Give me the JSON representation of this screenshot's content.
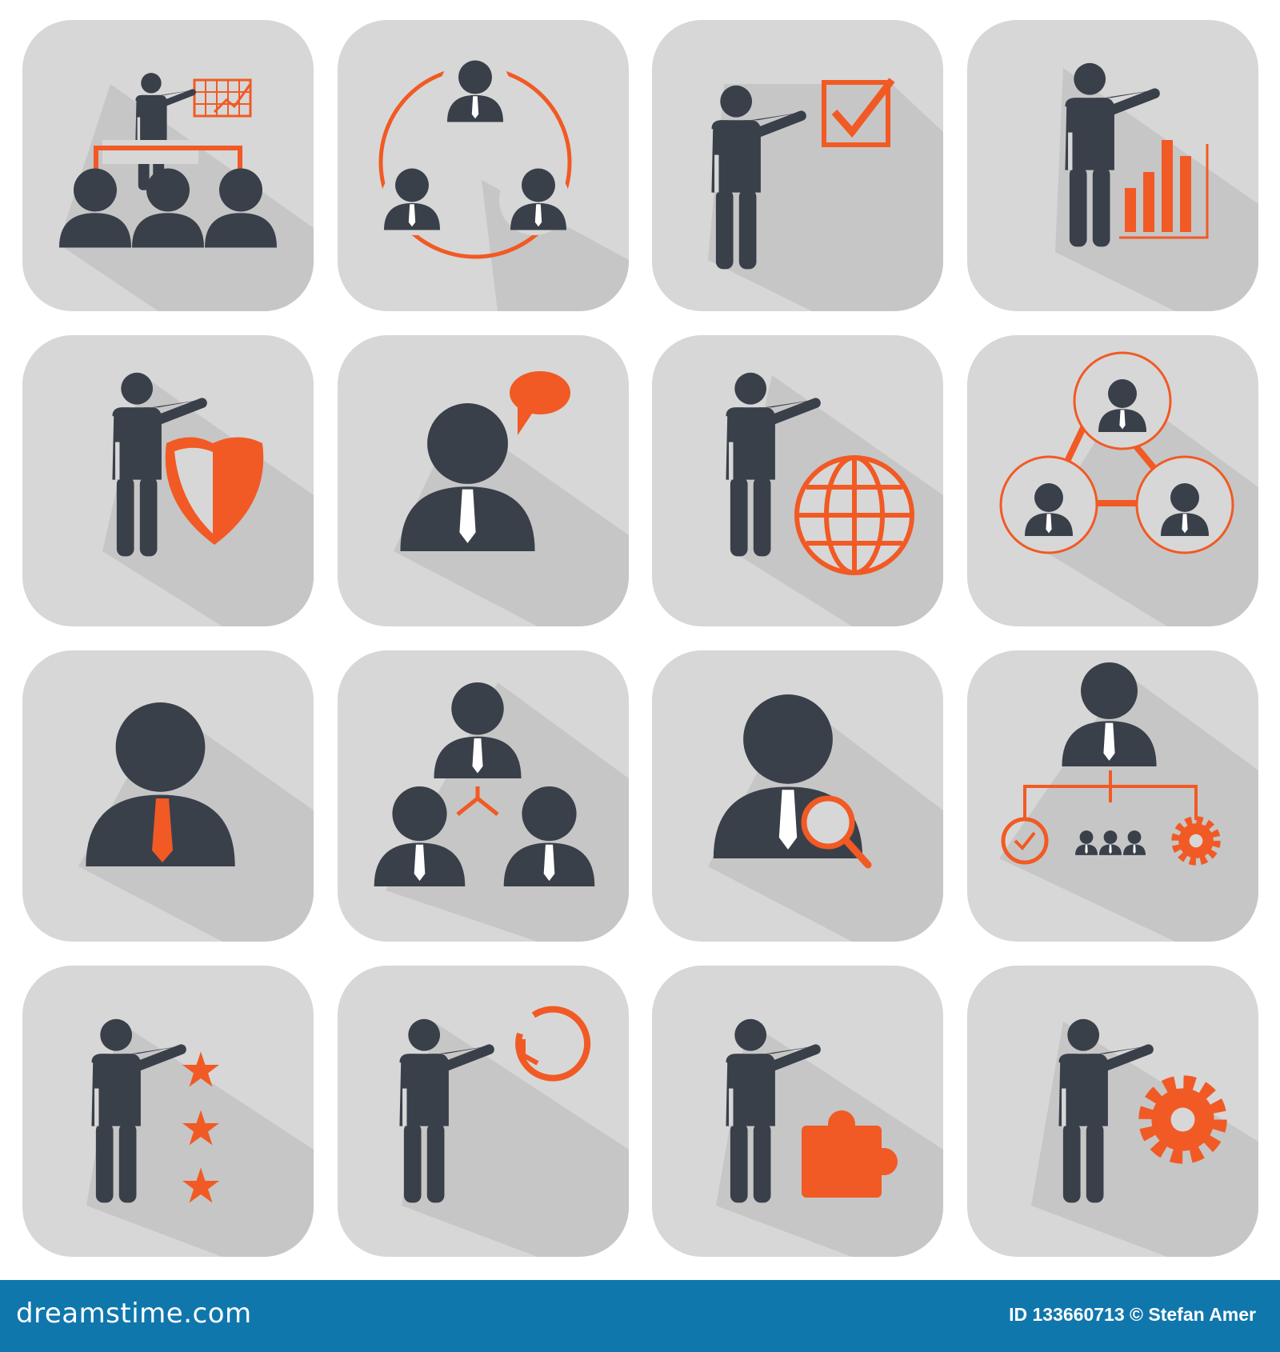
{
  "colors": {
    "tile": "#d7d7d7",
    "shadow": "#c6c6c6",
    "dark": "#3a404a",
    "accent": "#f15a24",
    "footer": "#1077ad"
  },
  "icons": [
    "presentation-audience-icon",
    "team-cycle-icon",
    "presenter-checkbox-icon",
    "presenter-bar-chart-icon",
    "presenter-shield-icon",
    "user-speech-bubble-icon",
    "presenter-globe-icon",
    "network-circles-icon",
    "user-orange-tie-icon",
    "team-connection-icon",
    "user-search-icon",
    "org-chart-icon",
    "presenter-stars-icon",
    "presenter-timer-icon",
    "presenter-puzzle-icon",
    "presenter-gear-icon"
  ],
  "footer": {
    "logo": "dreamstime.com",
    "credit": "ID 133660713 © Stefan Amer"
  }
}
